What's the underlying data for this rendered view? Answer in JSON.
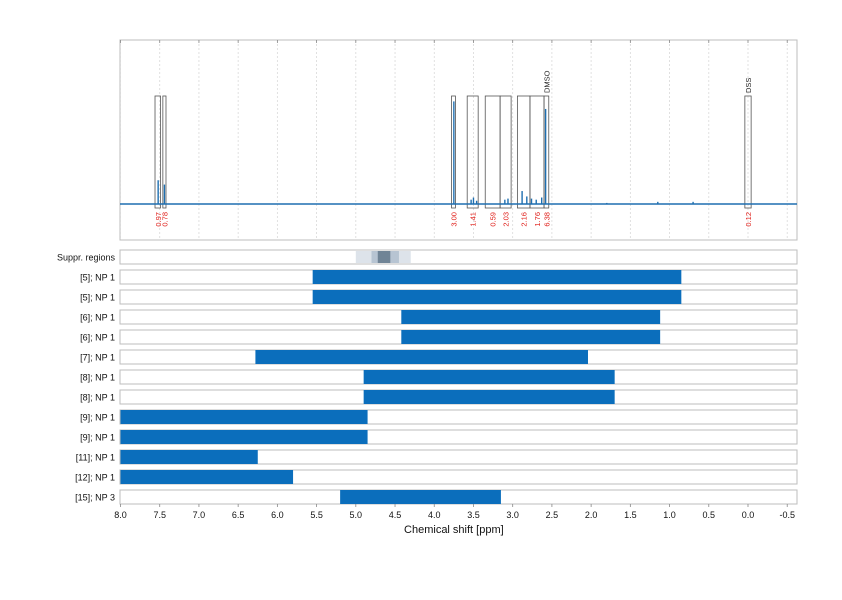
{
  "chart_data": {
    "type": "nmr-spectrum-with-range-bars",
    "x_axis": {
      "label": "Chemical shift [ppm]",
      "reversed": true,
      "range": [
        8.0,
        -0.5
      ],
      "ticks": [
        8.0,
        7.5,
        7.0,
        6.5,
        6.0,
        5.5,
        5.0,
        4.5,
        4.0,
        3.5,
        3.0,
        2.5,
        2.0,
        1.5,
        1.0,
        0.5,
        0.0,
        -0.5
      ],
      "tick_labels": [
        "8.0",
        "7.5",
        "7.0",
        "6.5",
        "6.0",
        "5.5",
        "5.0",
        "4.5",
        "4.0",
        "3.5",
        "3.0",
        "2.5",
        "2.0",
        "1.5",
        "1.0",
        "0.5",
        "0.0",
        "-0.5"
      ],
      "grid": "dashed vertical"
    },
    "spectrum": {
      "color": "#1f6fb0",
      "peaks": [
        {
          "ppm": 7.52,
          "height": 0.22
        },
        {
          "ppm": 7.44,
          "height": 0.18
        },
        {
          "ppm": 3.75,
          "height": 0.95
        },
        {
          "ppm": 3.53,
          "height": 0.04
        },
        {
          "ppm": 3.5,
          "height": 0.06
        },
        {
          "ppm": 3.46,
          "height": 0.03
        },
        {
          "ppm": 3.1,
          "height": 0.04
        },
        {
          "ppm": 3.06,
          "height": 0.05
        },
        {
          "ppm": 2.88,
          "height": 0.12
        },
        {
          "ppm": 2.82,
          "height": 0.07
        },
        {
          "ppm": 2.76,
          "height": 0.05
        },
        {
          "ppm": 2.7,
          "height": 0.04
        },
        {
          "ppm": 2.63,
          "height": 0.06
        },
        {
          "ppm": 2.58,
          "height": 0.88
        },
        {
          "ppm": 1.8,
          "height": 0.01
        },
        {
          "ppm": 1.15,
          "height": 0.02
        },
        {
          "ppm": 0.7,
          "height": 0.02
        }
      ]
    },
    "integration_regions": [
      {
        "from": 7.56,
        "to": 7.49,
        "value": "0.97"
      },
      {
        "from": 7.46,
        "to": 7.42,
        "value": "0.78"
      },
      {
        "from": 3.78,
        "to": 3.73,
        "value": "3.00"
      },
      {
        "from": 3.58,
        "to": 3.44,
        "value": "1.41"
      },
      {
        "from": 3.35,
        "to": 3.16,
        "value": "0.59"
      },
      {
        "from": 3.16,
        "to": 3.02,
        "value": "2.03"
      },
      {
        "from": 2.94,
        "to": 2.78,
        "value": "2.16"
      },
      {
        "from": 2.78,
        "to": 2.6,
        "value": "1.76"
      },
      {
        "from": 2.6,
        "to": 2.54,
        "value": "6.38",
        "label": "DMSO"
      },
      {
        "from": 0.04,
        "to": -0.04,
        "value": "0.12",
        "label": "DSS"
      }
    ],
    "integration_color": "#e0201b",
    "suppr_regions": {
      "label": "Suppr. regions",
      "bands": [
        {
          "from": 5.0,
          "to": 4.3,
          "level": 1
        },
        {
          "from": 4.8,
          "to": 4.45,
          "level": 2
        },
        {
          "from": 4.72,
          "to": 4.56,
          "level": 3
        }
      ]
    },
    "range_bars": [
      {
        "label": "[5]; NP 1",
        "from": 5.55,
        "to": 0.85
      },
      {
        "label": "[5]; NP 1",
        "from": 5.55,
        "to": 0.85
      },
      {
        "label": "[6]; NP 1",
        "from": 4.42,
        "to": 1.12
      },
      {
        "label": "[6]; NP 1",
        "from": 4.42,
        "to": 1.12
      },
      {
        "label": "[7]; NP 1",
        "from": 6.28,
        "to": 2.04
      },
      {
        "label": "[8]; NP 1",
        "from": 4.9,
        "to": 1.7
      },
      {
        "label": "[8]; NP 1",
        "from": 4.9,
        "to": 1.7
      },
      {
        "label": "[9]; NP 1",
        "from": 8.0,
        "to": 4.85
      },
      {
        "label": "[9]; NP 1",
        "from": 8.0,
        "to": 4.85
      },
      {
        "label": "[11]; NP 1",
        "from": 8.0,
        "to": 6.25
      },
      {
        "label": "[12]; NP 1",
        "from": 8.0,
        "to": 5.8
      },
      {
        "label": "[15]; NP 3",
        "from": 5.2,
        "to": 3.15
      }
    ],
    "bar_color": "#0b6ebc"
  }
}
